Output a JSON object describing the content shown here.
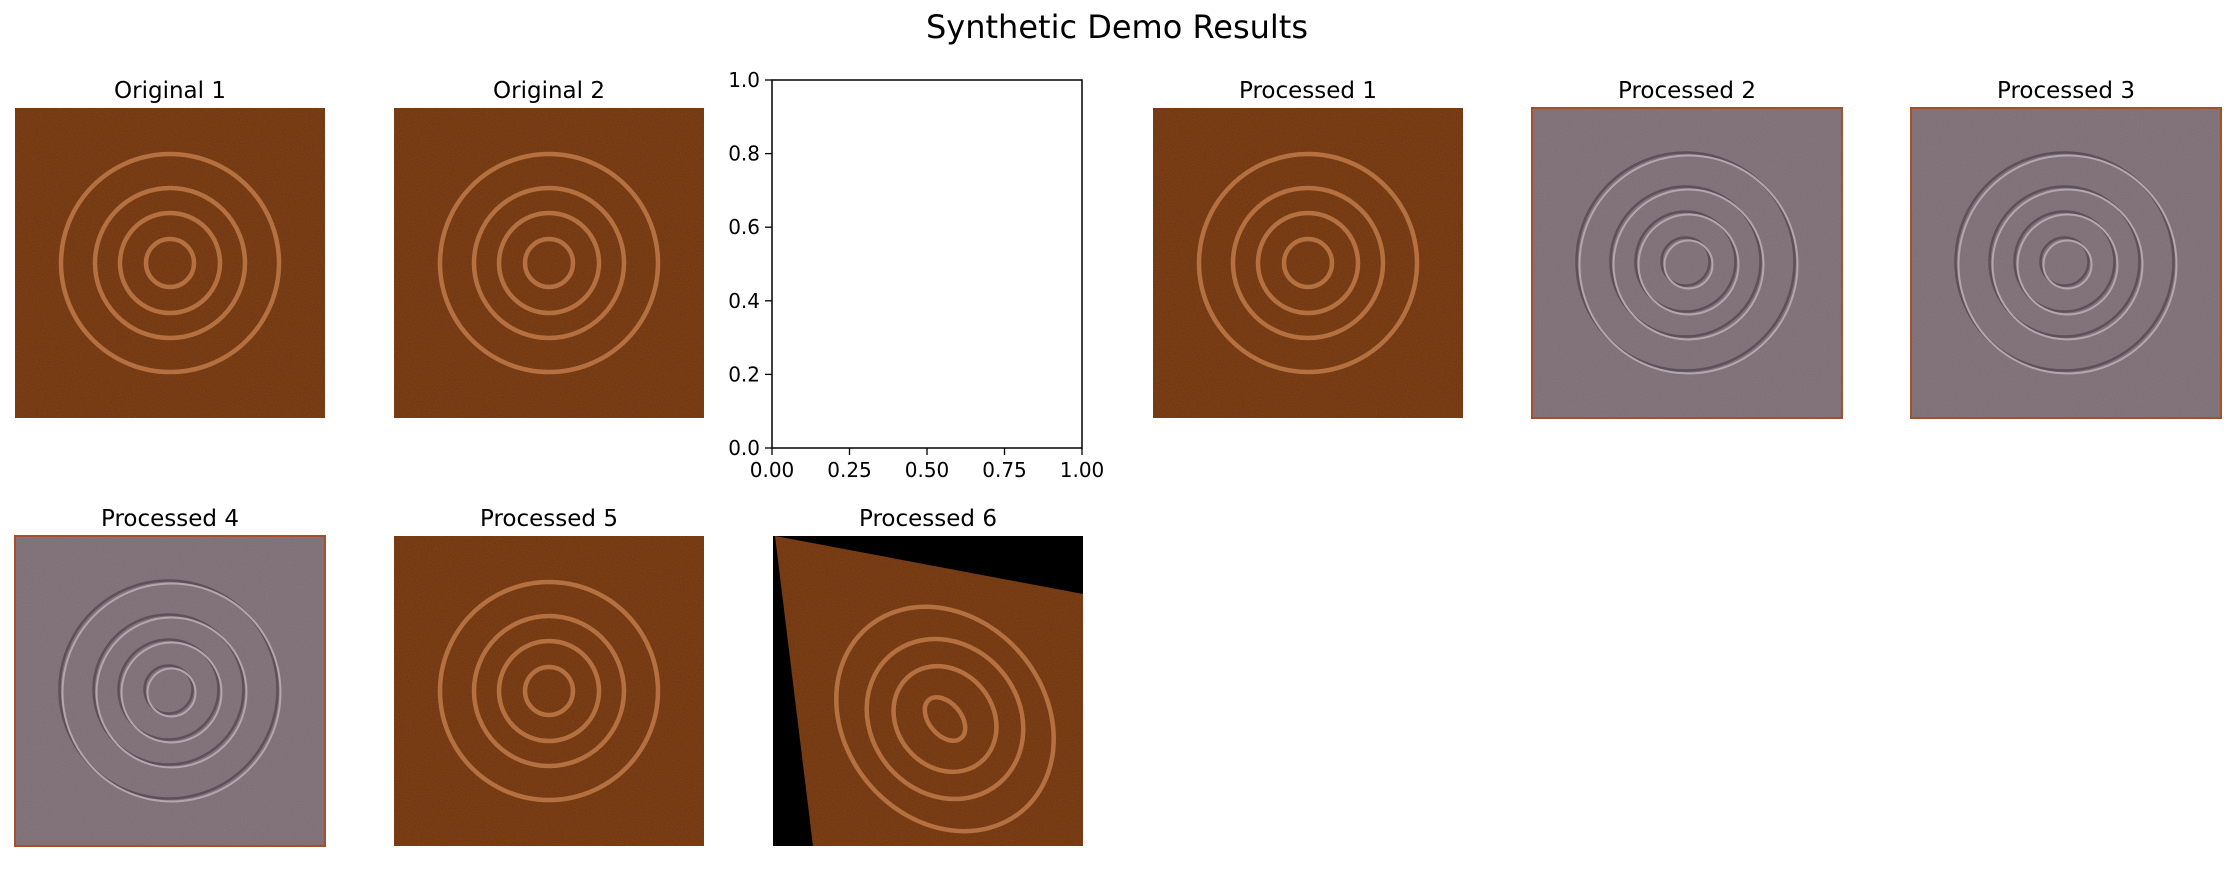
{
  "figure": {
    "title": "Synthetic Demo Results"
  },
  "colors": {
    "background": "#ffffff",
    "rust_base": "#8a4517",
    "rust_ring": "#c07a48",
    "emboss_base": "#8a7a80",
    "emboss_edge": "#a4502a",
    "black": "#000000"
  },
  "panels": [
    {
      "title": "Original 1",
      "style": "rust"
    },
    {
      "title": "Original 2",
      "style": "rust"
    },
    {
      "title": "Processed 1",
      "style": "rust"
    },
    {
      "title": "Processed 2",
      "style": "emboss"
    },
    {
      "title": "Processed 3",
      "style": "emboss"
    },
    {
      "title": "Processed 4",
      "style": "emboss"
    },
    {
      "title": "Processed 5",
      "style": "rust"
    },
    {
      "title": "Processed 6",
      "style": "rotated"
    }
  ],
  "chart_data": {
    "type": "scatter",
    "title": "",
    "xlabel": "",
    "ylabel": "",
    "xlim": [
      0,
      1
    ],
    "ylim": [
      0,
      1
    ],
    "x_ticks": [
      "0.00",
      "0.25",
      "0.50",
      "0.75",
      "1.00"
    ],
    "y_ticks": [
      "0.0",
      "0.2",
      "0.4",
      "0.6",
      "0.8",
      "1.0"
    ],
    "series": [],
    "grid": false
  }
}
